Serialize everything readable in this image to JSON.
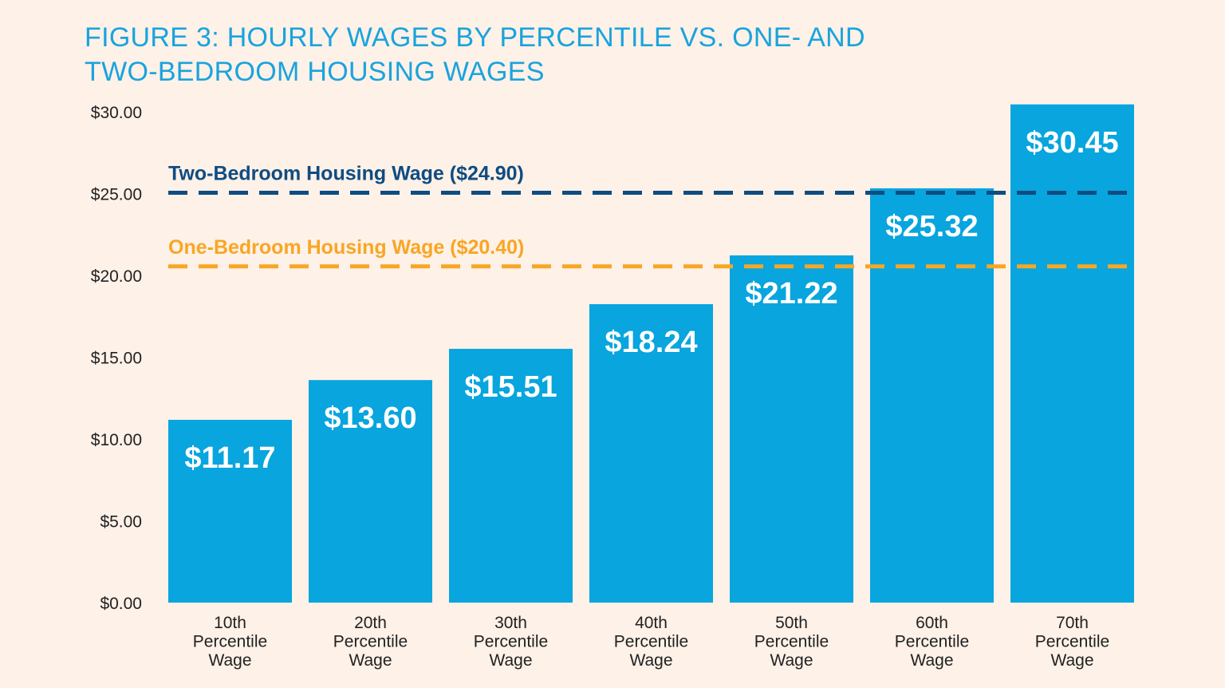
{
  "chart_data": {
    "type": "bar",
    "title_lines": [
      "FIGURE 3: HOURLY WAGES BY PERCENTILE VS. ONE- AND",
      "TWO-BEDROOM HOUSING WAGES"
    ],
    "categories": [
      [
        "10th",
        "Percentile",
        "Wage"
      ],
      [
        "20th",
        "Percentile",
        "Wage"
      ],
      [
        "30th",
        "Percentile",
        "Wage"
      ],
      [
        "40th",
        "Percentile",
        "Wage"
      ],
      [
        "50th",
        "Percentile",
        "Wage"
      ],
      [
        "60th",
        "Percentile",
        "Wage"
      ],
      [
        "70th",
        "Percentile",
        "Wage"
      ]
    ],
    "values": [
      11.17,
      13.6,
      15.51,
      18.24,
      21.22,
      25.32,
      30.45
    ],
    "data_labels": [
      "$11.17",
      "$13.60",
      "$15.51",
      "$18.24",
      "$21.22",
      "$25.32",
      "$30.45"
    ],
    "ylim": [
      0,
      30
    ],
    "yticks": [
      0,
      5,
      10,
      15,
      20,
      25,
      30
    ],
    "ytick_labels": [
      "$0.00",
      "$5.00",
      "$10.00",
      "$15.00",
      "$20.00",
      "$25.00",
      "$30.00"
    ],
    "reference_lines": [
      {
        "label": "Two-Bedroom Housing Wage ($24.90)",
        "value": 24.9,
        "color": "#0f4c81"
      },
      {
        "label": "One-Bedroom Housing Wage ($20.40)",
        "value": 20.4,
        "color": "#f8a623"
      }
    ],
    "bar_color": "#08a5de",
    "grid": false,
    "xlabel": "",
    "ylabel": ""
  }
}
